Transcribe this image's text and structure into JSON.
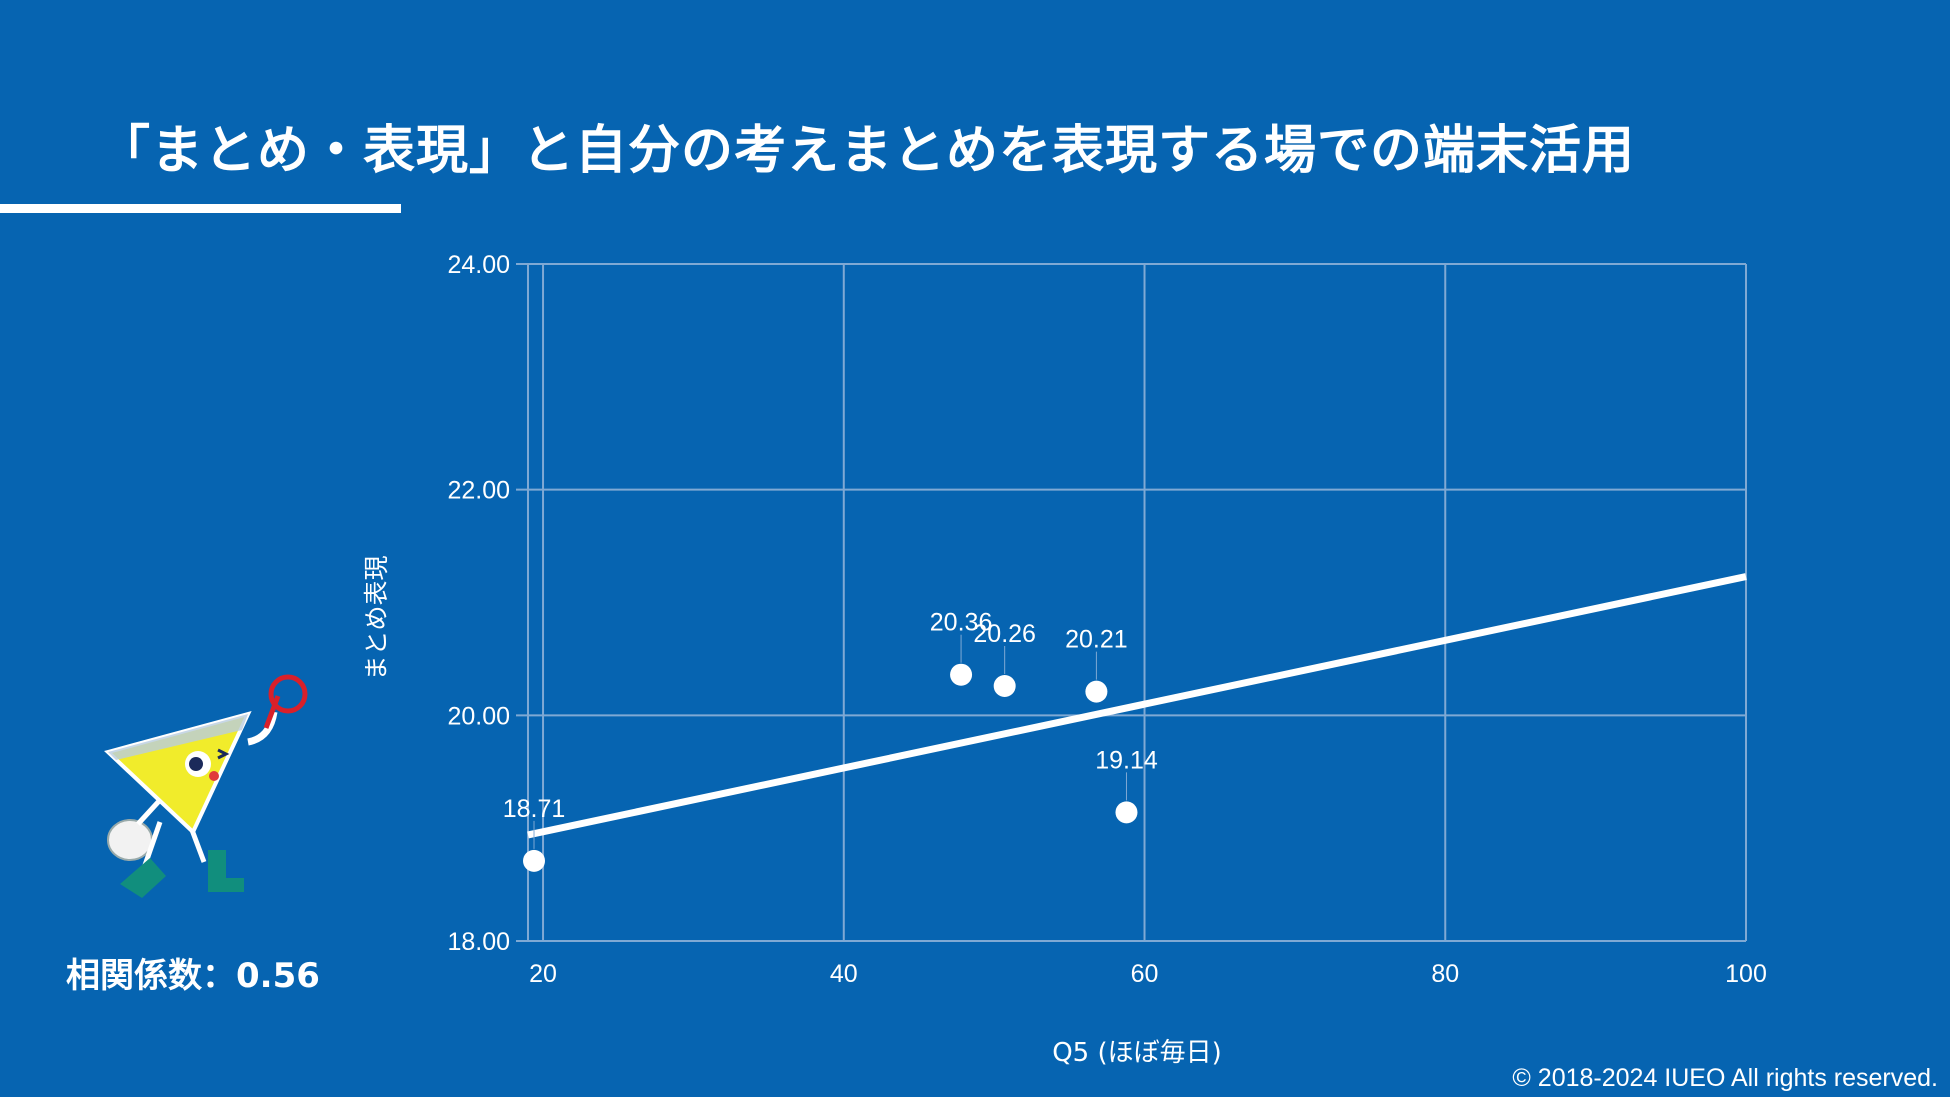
{
  "slide": {
    "title": "「まとめ・表現」と自分の考えまとめを表現する場での端末活用",
    "correlation_label": "相関係数：0.56",
    "copyright": "© 2018-2024 IUEO All rights reserved."
  },
  "colors": {
    "background": "#0664b1",
    "foreground": "#ffffff",
    "grid": "#7fa9d4"
  },
  "chart_data": {
    "type": "scatter",
    "xlabel": "Q5 (ほぼ毎日)",
    "ylabel": "まとめ表現",
    "xlim": [
      19,
      100
    ],
    "ylim": [
      18,
      24
    ],
    "x_ticks": [
      "20",
      "40",
      "60",
      "80",
      "100"
    ],
    "x_tick_values": [
      20,
      40,
      60,
      80,
      100
    ],
    "y_ticks": [
      "18.00",
      "20.00",
      "22.00",
      "24.00"
    ],
    "y_tick_values": [
      18,
      20,
      22,
      24
    ],
    "grid": true,
    "points": [
      {
        "x": 19.4,
        "y": 18.71,
        "label": "18.71"
      },
      {
        "x": 47.8,
        "y": 20.36,
        "label": "20.36"
      },
      {
        "x": 50.7,
        "y": 20.26,
        "label": "20.26"
      },
      {
        "x": 56.8,
        "y": 20.21,
        "label": "20.21"
      },
      {
        "x": 58.8,
        "y": 19.14,
        "label": "19.14"
      }
    ],
    "trendline": {
      "x": [
        19,
        100
      ],
      "y": [
        18.94,
        21.23
      ]
    }
  }
}
